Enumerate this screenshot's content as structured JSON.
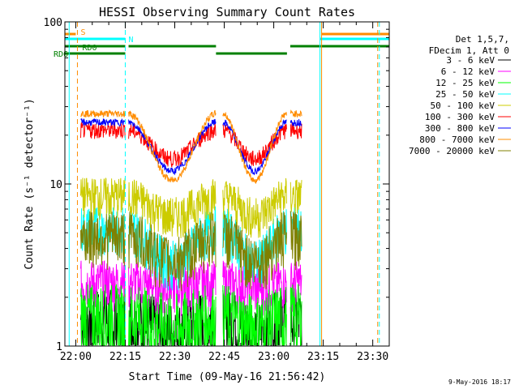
{
  "chart_data": {
    "type": "line",
    "title": "HESSI Observing Summary Count Rates",
    "xlabel": "Start Time (09-May-16 21:56:42)",
    "ylabel": "Count Rate (s⁻¹ detector⁻¹)",
    "yscale": "log",
    "ylim": [
      1,
      100
    ],
    "xlim": [
      "21:56:42",
      "23:35:00"
    ],
    "x_ticks": [
      "22:00",
      "22:15",
      "22:30",
      "22:45",
      "23:00",
      "23:15",
      "23:30"
    ],
    "y_ticks": [
      "1",
      "10",
      "100"
    ],
    "grid": false,
    "legend": {
      "header": [
        "Det 1,5,7,",
        "FDecim 1, Att 0"
      ],
      "position": "right"
    },
    "series": [
      {
        "name": "3 - 6 keV",
        "color": "#000000"
      },
      {
        "name": "6 - 12 keV",
        "color": "#ff00ff"
      },
      {
        "name": "12 - 25 keV",
        "color": "#00ff00"
      },
      {
        "name": "25 - 50 keV",
        "color": "#00ffff"
      },
      {
        "name": "50 - 100 keV",
        "color": "#cccc00"
      },
      {
        "name": "100 - 300 keV",
        "color": "#ff0000"
      },
      {
        "name": "300 - 800 keV",
        "color": "#0000ff"
      },
      {
        "name": "800 - 7000 keV",
        "color": "#ff8c00"
      },
      {
        "name": "7000 - 20000 keV",
        "color": "#808000"
      }
    ],
    "flags": [
      {
        "label": "S",
        "color": "#ff8c00"
      },
      {
        "label": "N",
        "color": "#00ffff"
      },
      {
        "label": "RD0",
        "color": "#008000"
      },
      {
        "label": "RD6",
        "color": "#008000"
      }
    ],
    "timestamp": "9-May-2016 18:17"
  }
}
